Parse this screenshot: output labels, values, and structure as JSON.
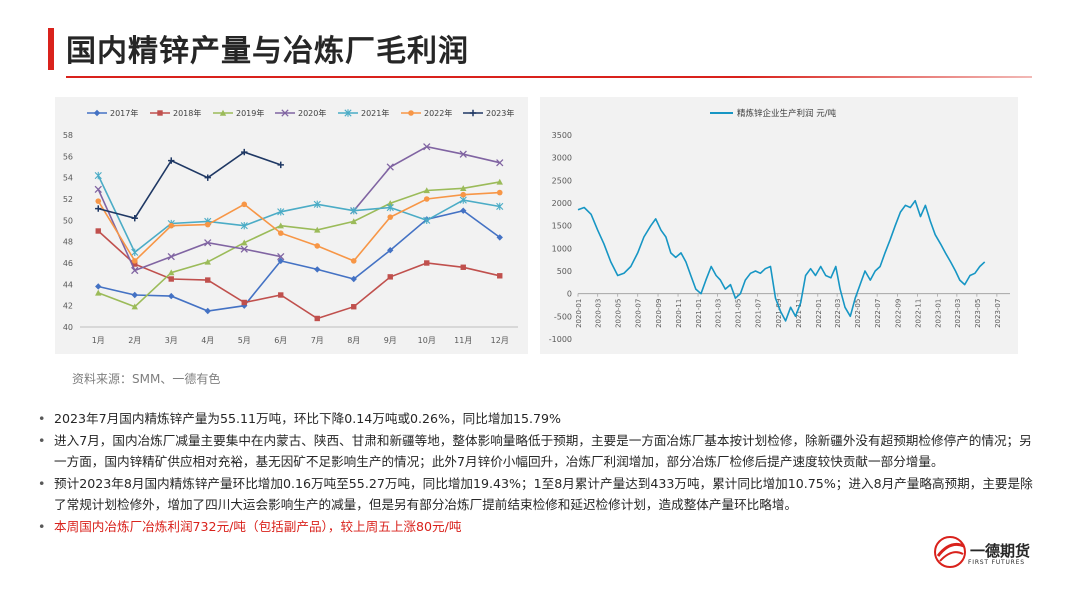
{
  "page_title": "国内精锌产量与冶炼厂毛利润",
  "source": "资料来源：SMM、一德有色",
  "bullets": [
    "2023年7月国内精炼锌产量为55.11万吨，环比下降0.14万吨或0.26%，同比增加15.79%",
    "进入7月，国内冶炼厂减量主要集中在内蒙古、陕西、甘肃和新疆等地，整体影响量略低于预期，主要是一方面冶炼厂基本按计划检修，除新疆外没有超预期检修停产的情况；另一方面，国内锌精矿供应相对充裕，基无因矿不足影响生产的情况；此外7月锌价小幅回升，冶炼厂利润增加，部分冶炼厂检修后提产速度较快贡献一部分增量。",
    "预计2023年8月国内精炼锌产量环比增加0.16万吨至55.27万吨，同比增加19.43%；1至8月累计产量达到433万吨，累计同比增加10.75%；进入8月产量略高预期，主要是除了常规计划检修外，增加了四川大运会影响生产的减量，但是另有部分冶炼厂提前结束检修和延迟检修计划，造成整体产量环比略增。",
    "本周国内冶炼厂冶炼利润732元/吨（包括副产品），较上周五上涨80元/吨"
  ],
  "logo": {
    "name": "一德期货",
    "sub": "FIRST FUTURES"
  },
  "colors": {
    "accent": "#d9221c"
  },
  "chart_data": [
    {
      "type": "line",
      "categories": [
        "1月",
        "2月",
        "3月",
        "4月",
        "5月",
        "6月",
        "7月",
        "8月",
        "9月",
        "10月",
        "11月",
        "12月"
      ],
      "ylim": [
        40,
        58
      ],
      "yticks": [
        40,
        42,
        44,
        46,
        48,
        50,
        52,
        54,
        56,
        58
      ],
      "legend_position": "top",
      "series": [
        {
          "name": "2017年",
          "color": "#4472c4",
          "marker": "diamond",
          "values": [
            43.8,
            43.0,
            42.9,
            41.5,
            42.0,
            46.2,
            45.4,
            44.5,
            47.2,
            50.1,
            50.9,
            48.4
          ]
        },
        {
          "name": "2018年",
          "color": "#c0504d",
          "marker": "square",
          "values": [
            49.0,
            45.9,
            44.5,
            44.4,
            42.3,
            43.0,
            40.8,
            41.9,
            44.7,
            46.0,
            45.6,
            44.8
          ]
        },
        {
          "name": "2019年",
          "color": "#9bbb59",
          "marker": "triangle",
          "values": [
            43.2,
            41.9,
            45.1,
            46.1,
            47.9,
            49.5,
            49.1,
            49.9,
            51.6,
            52.8,
            53.0,
            53.6
          ]
        },
        {
          "name": "2020年",
          "color": "#8064a2",
          "marker": "x",
          "values": [
            52.9,
            45.3,
            46.6,
            47.9,
            47.3,
            46.6,
            null,
            50.9,
            55.0,
            56.9,
            56.2,
            55.4
          ]
        },
        {
          "name": "2021年",
          "color": "#4bacc6",
          "marker": "star",
          "values": [
            54.2,
            47.0,
            49.7,
            49.9,
            49.5,
            50.8,
            51.5,
            50.9,
            51.2,
            50.0,
            51.9,
            51.3
          ]
        },
        {
          "name": "2022年",
          "color": "#f79646",
          "marker": "circle",
          "values": [
            51.8,
            46.2,
            49.5,
            49.6,
            51.5,
            48.8,
            47.6,
            46.2,
            50.3,
            52.0,
            52.4,
            52.6
          ]
        },
        {
          "name": "2023年",
          "color": "#1f3864",
          "marker": "plus",
          "values": [
            51.1,
            50.2,
            55.6,
            54.0,
            56.4,
            55.2,
            null,
            null,
            null,
            null,
            null,
            null
          ]
        }
      ]
    },
    {
      "type": "line",
      "ylim": [
        -1000,
        3500
      ],
      "yticks": [
        -1000,
        -500,
        0,
        500,
        1000,
        1500,
        2000,
        2500,
        3000,
        3500
      ],
      "x_labels": [
        "2020-01",
        "2020-03",
        "2020-05",
        "2020-07",
        "2020-09",
        "2020-11",
        "2021-01",
        "2021-03",
        "2021-05",
        "2021-07",
        "2021-09",
        "2021-11",
        "2022-01",
        "2022-03",
        "2022-05",
        "2022-07",
        "2022-09",
        "2022-11",
        "2023-01",
        "2023-03",
        "2023-05",
        "2023-07"
      ],
      "legend_position": "top",
      "series": [
        {
          "name": "精炼锌企业生产利润 元/吨",
          "color": "#1796c4",
          "points": [
            [
              "2020-01-01",
              1850
            ],
            [
              "2020-01-20",
              1900
            ],
            [
              "2020-02-10",
              1750
            ],
            [
              "2020-03-01",
              1400
            ],
            [
              "2020-03-20",
              1100
            ],
            [
              "2020-04-10",
              700
            ],
            [
              "2020-05-01",
              400
            ],
            [
              "2020-05-20",
              450
            ],
            [
              "2020-06-10",
              600
            ],
            [
              "2020-07-01",
              900
            ],
            [
              "2020-07-20",
              1250
            ],
            [
              "2020-08-10",
              1500
            ],
            [
              "2020-08-25",
              1650
            ],
            [
              "2020-09-10",
              1400
            ],
            [
              "2020-09-25",
              1250
            ],
            [
              "2020-10-10",
              900
            ],
            [
              "2020-10-25",
              800
            ],
            [
              "2020-11-10",
              900
            ],
            [
              "2020-11-25",
              700
            ],
            [
              "2020-12-10",
              400
            ],
            [
              "2020-12-25",
              100
            ],
            [
              "2021-01-10",
              0
            ],
            [
              "2021-01-25",
              300
            ],
            [
              "2021-02-10",
              600
            ],
            [
              "2021-02-25",
              400
            ],
            [
              "2021-03-10",
              300
            ],
            [
              "2021-03-25",
              100
            ],
            [
              "2021-04-10",
              200
            ],
            [
              "2021-04-25",
              -100
            ],
            [
              "2021-05-10",
              0
            ],
            [
              "2021-05-25",
              300
            ],
            [
              "2021-06-10",
              450
            ],
            [
              "2021-06-25",
              500
            ],
            [
              "2021-07-10",
              450
            ],
            [
              "2021-07-25",
              550
            ],
            [
              "2021-08-10",
              600
            ],
            [
              "2021-08-25",
              -100
            ],
            [
              "2021-09-10",
              -400
            ],
            [
              "2021-09-25",
              -600
            ],
            [
              "2021-10-10",
              -300
            ],
            [
              "2021-10-25",
              -500
            ],
            [
              "2021-11-10",
              -200
            ],
            [
              "2021-11-25",
              400
            ],
            [
              "2021-12-10",
              550
            ],
            [
              "2021-12-25",
              400
            ],
            [
              "2022-01-10",
              600
            ],
            [
              "2022-01-25",
              400
            ],
            [
              "2022-02-10",
              350
            ],
            [
              "2022-02-25",
              600
            ],
            [
              "2022-03-10",
              100
            ],
            [
              "2022-03-25",
              -300
            ],
            [
              "2022-04-10",
              -500
            ],
            [
              "2022-04-25",
              -100
            ],
            [
              "2022-05-10",
              200
            ],
            [
              "2022-05-25",
              500
            ],
            [
              "2022-06-10",
              300
            ],
            [
              "2022-06-25",
              500
            ],
            [
              "2022-07-10",
              600
            ],
            [
              "2022-07-25",
              900
            ],
            [
              "2022-08-10",
              1200
            ],
            [
              "2022-08-25",
              1500
            ],
            [
              "2022-09-10",
              1800
            ],
            [
              "2022-09-25",
              1950
            ],
            [
              "2022-10-10",
              1900
            ],
            [
              "2022-10-25",
              2050
            ],
            [
              "2022-11-10",
              1700
            ],
            [
              "2022-11-25",
              1950
            ],
            [
              "2022-12-10",
              1600
            ],
            [
              "2022-12-25",
              1300
            ],
            [
              "2023-01-10",
              1100
            ],
            [
              "2023-01-25",
              900
            ],
            [
              "2023-02-10",
              700
            ],
            [
              "2023-02-25",
              500
            ],
            [
              "2023-03-10",
              300
            ],
            [
              "2023-03-25",
              200
            ],
            [
              "2023-04-10",
              400
            ],
            [
              "2023-04-25",
              450
            ],
            [
              "2023-05-10",
              600
            ],
            [
              "2023-05-25",
              700
            ]
          ]
        }
      ]
    }
  ]
}
